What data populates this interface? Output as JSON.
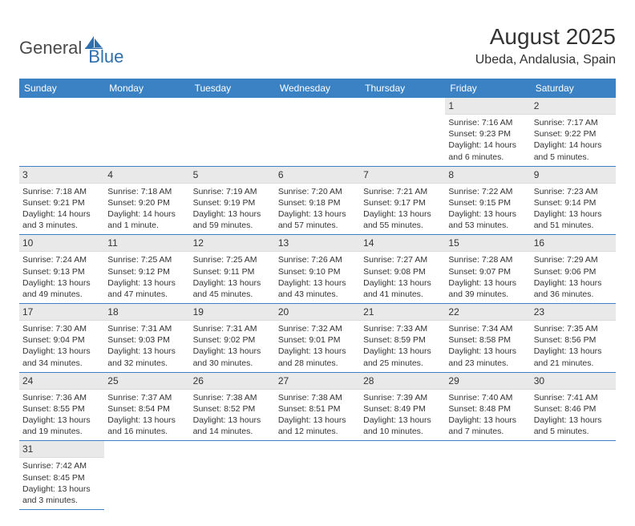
{
  "logo": {
    "word1": "General",
    "word2": "Blue",
    "icon_color": "#2f6fad"
  },
  "title": "August 2025",
  "location": "Ubeda, Andalusia, Spain",
  "colors": {
    "header_bg": "#3b82c4",
    "header_fg": "#ffffff",
    "daynum_bg": "#e9e9e9",
    "row_border": "#3b82c4",
    "text": "#333333"
  },
  "weekdays": [
    "Sunday",
    "Monday",
    "Tuesday",
    "Wednesday",
    "Thursday",
    "Friday",
    "Saturday"
  ],
  "font": {
    "family": "Arial",
    "title_size": 28,
    "location_size": 16,
    "header_size": 12,
    "cell_size": 10.5
  },
  "grid": {
    "rows": 6,
    "cols": 7,
    "first_day_column": 5
  },
  "days": [
    {
      "n": "1",
      "sunrise": "Sunrise: 7:16 AM",
      "sunset": "Sunset: 9:23 PM",
      "d1": "Daylight: 14 hours",
      "d2": "and 6 minutes."
    },
    {
      "n": "2",
      "sunrise": "Sunrise: 7:17 AM",
      "sunset": "Sunset: 9:22 PM",
      "d1": "Daylight: 14 hours",
      "d2": "and 5 minutes."
    },
    {
      "n": "3",
      "sunrise": "Sunrise: 7:18 AM",
      "sunset": "Sunset: 9:21 PM",
      "d1": "Daylight: 14 hours",
      "d2": "and 3 minutes."
    },
    {
      "n": "4",
      "sunrise": "Sunrise: 7:18 AM",
      "sunset": "Sunset: 9:20 PM",
      "d1": "Daylight: 14 hours",
      "d2": "and 1 minute."
    },
    {
      "n": "5",
      "sunrise": "Sunrise: 7:19 AM",
      "sunset": "Sunset: 9:19 PM",
      "d1": "Daylight: 13 hours",
      "d2": "and 59 minutes."
    },
    {
      "n": "6",
      "sunrise": "Sunrise: 7:20 AM",
      "sunset": "Sunset: 9:18 PM",
      "d1": "Daylight: 13 hours",
      "d2": "and 57 minutes."
    },
    {
      "n": "7",
      "sunrise": "Sunrise: 7:21 AM",
      "sunset": "Sunset: 9:17 PM",
      "d1": "Daylight: 13 hours",
      "d2": "and 55 minutes."
    },
    {
      "n": "8",
      "sunrise": "Sunrise: 7:22 AM",
      "sunset": "Sunset: 9:15 PM",
      "d1": "Daylight: 13 hours",
      "d2": "and 53 minutes."
    },
    {
      "n": "9",
      "sunrise": "Sunrise: 7:23 AM",
      "sunset": "Sunset: 9:14 PM",
      "d1": "Daylight: 13 hours",
      "d2": "and 51 minutes."
    },
    {
      "n": "10",
      "sunrise": "Sunrise: 7:24 AM",
      "sunset": "Sunset: 9:13 PM",
      "d1": "Daylight: 13 hours",
      "d2": "and 49 minutes."
    },
    {
      "n": "11",
      "sunrise": "Sunrise: 7:25 AM",
      "sunset": "Sunset: 9:12 PM",
      "d1": "Daylight: 13 hours",
      "d2": "and 47 minutes."
    },
    {
      "n": "12",
      "sunrise": "Sunrise: 7:25 AM",
      "sunset": "Sunset: 9:11 PM",
      "d1": "Daylight: 13 hours",
      "d2": "and 45 minutes."
    },
    {
      "n": "13",
      "sunrise": "Sunrise: 7:26 AM",
      "sunset": "Sunset: 9:10 PM",
      "d1": "Daylight: 13 hours",
      "d2": "and 43 minutes."
    },
    {
      "n": "14",
      "sunrise": "Sunrise: 7:27 AM",
      "sunset": "Sunset: 9:08 PM",
      "d1": "Daylight: 13 hours",
      "d2": "and 41 minutes."
    },
    {
      "n": "15",
      "sunrise": "Sunrise: 7:28 AM",
      "sunset": "Sunset: 9:07 PM",
      "d1": "Daylight: 13 hours",
      "d2": "and 39 minutes."
    },
    {
      "n": "16",
      "sunrise": "Sunrise: 7:29 AM",
      "sunset": "Sunset: 9:06 PM",
      "d1": "Daylight: 13 hours",
      "d2": "and 36 minutes."
    },
    {
      "n": "17",
      "sunrise": "Sunrise: 7:30 AM",
      "sunset": "Sunset: 9:04 PM",
      "d1": "Daylight: 13 hours",
      "d2": "and 34 minutes."
    },
    {
      "n": "18",
      "sunrise": "Sunrise: 7:31 AM",
      "sunset": "Sunset: 9:03 PM",
      "d1": "Daylight: 13 hours",
      "d2": "and 32 minutes."
    },
    {
      "n": "19",
      "sunrise": "Sunrise: 7:31 AM",
      "sunset": "Sunset: 9:02 PM",
      "d1": "Daylight: 13 hours",
      "d2": "and 30 minutes."
    },
    {
      "n": "20",
      "sunrise": "Sunrise: 7:32 AM",
      "sunset": "Sunset: 9:01 PM",
      "d1": "Daylight: 13 hours",
      "d2": "and 28 minutes."
    },
    {
      "n": "21",
      "sunrise": "Sunrise: 7:33 AM",
      "sunset": "Sunset: 8:59 PM",
      "d1": "Daylight: 13 hours",
      "d2": "and 25 minutes."
    },
    {
      "n": "22",
      "sunrise": "Sunrise: 7:34 AM",
      "sunset": "Sunset: 8:58 PM",
      "d1": "Daylight: 13 hours",
      "d2": "and 23 minutes."
    },
    {
      "n": "23",
      "sunrise": "Sunrise: 7:35 AM",
      "sunset": "Sunset: 8:56 PM",
      "d1": "Daylight: 13 hours",
      "d2": "and 21 minutes."
    },
    {
      "n": "24",
      "sunrise": "Sunrise: 7:36 AM",
      "sunset": "Sunset: 8:55 PM",
      "d1": "Daylight: 13 hours",
      "d2": "and 19 minutes."
    },
    {
      "n": "25",
      "sunrise": "Sunrise: 7:37 AM",
      "sunset": "Sunset: 8:54 PM",
      "d1": "Daylight: 13 hours",
      "d2": "and 16 minutes."
    },
    {
      "n": "26",
      "sunrise": "Sunrise: 7:38 AM",
      "sunset": "Sunset: 8:52 PM",
      "d1": "Daylight: 13 hours",
      "d2": "and 14 minutes."
    },
    {
      "n": "27",
      "sunrise": "Sunrise: 7:38 AM",
      "sunset": "Sunset: 8:51 PM",
      "d1": "Daylight: 13 hours",
      "d2": "and 12 minutes."
    },
    {
      "n": "28",
      "sunrise": "Sunrise: 7:39 AM",
      "sunset": "Sunset: 8:49 PM",
      "d1": "Daylight: 13 hours",
      "d2": "and 10 minutes."
    },
    {
      "n": "29",
      "sunrise": "Sunrise: 7:40 AM",
      "sunset": "Sunset: 8:48 PM",
      "d1": "Daylight: 13 hours",
      "d2": "and 7 minutes."
    },
    {
      "n": "30",
      "sunrise": "Sunrise: 7:41 AM",
      "sunset": "Sunset: 8:46 PM",
      "d1": "Daylight: 13 hours",
      "d2": "and 5 minutes."
    },
    {
      "n": "31",
      "sunrise": "Sunrise: 7:42 AM",
      "sunset": "Sunset: 8:45 PM",
      "d1": "Daylight: 13 hours",
      "d2": "and 3 minutes."
    }
  ]
}
